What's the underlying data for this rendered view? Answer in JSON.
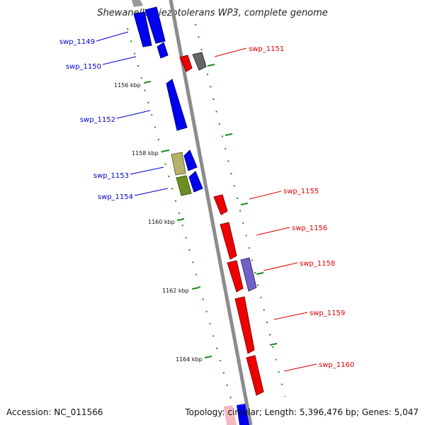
{
  "title": "Shewanella piezotolerans WP3, complete genome",
  "accession": "Accession: NC_011566",
  "topology": "Topology: circular; Length: 5,396,476 bp; Genes: 5,047",
  "colors": {
    "backbone": "#8c8c8c",
    "tick": "#1f8a1f",
    "forward_label": "#0000cc",
    "reverse_label": "#dd0000",
    "blue": "#0000ee",
    "red": "#ee0000",
    "gray": "#666666",
    "khaki": "#b5b26a",
    "olive": "#6b8e23",
    "slate": "#7060c8"
  },
  "scale_labels": [
    "1156 kbp",
    "1158 kbp",
    "1160 kbp",
    "1162 kbp",
    "1164 kbp"
  ],
  "forward_labels": [
    "swp_1149",
    "swp_1150",
    "swp_1152",
    "swp_1153",
    "swp_1154"
  ],
  "reverse_labels": [
    "swp_1151",
    "swp_1155",
    "swp_1156",
    "swp_1158",
    "swp_1159",
    "swp_1160"
  ]
}
